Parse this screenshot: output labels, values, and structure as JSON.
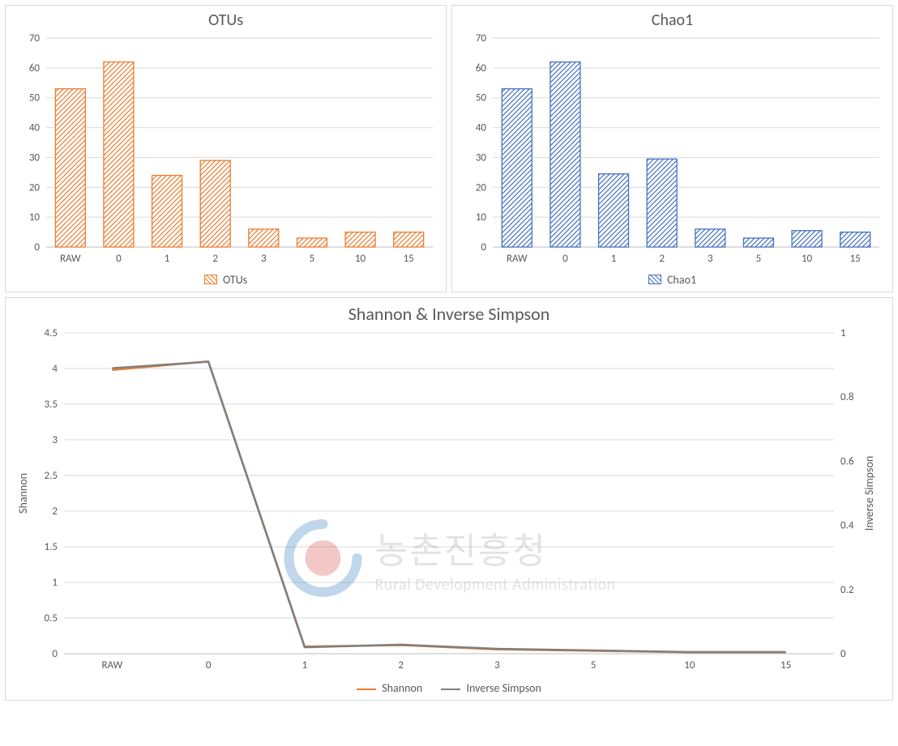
{
  "categories": [
    "RAW",
    "0",
    "1",
    "2",
    "3",
    "5",
    "10",
    "15"
  ],
  "bars_ytick_step": 10,
  "top_ylim": [
    0,
    70
  ],
  "otus": {
    "type": "bar",
    "title": "OTUs",
    "series_name": "OTUs",
    "values": [
      53,
      62,
      24,
      29,
      6,
      3,
      5,
      5
    ],
    "bar_stroke": "#ed7d31",
    "bar_fill_hatch": "#ed7d31",
    "background": "#ffffff",
    "grid_color": "#d9d9d9",
    "axis_line_color": "#bfbfbf",
    "tick_color": "#595959",
    "title_color": "#595959",
    "title_fontsize": 20,
    "tick_fontsize": 13,
    "bar_width": 0.62
  },
  "chao1": {
    "type": "bar",
    "title": "Chao1",
    "series_name": "Chao1",
    "values": [
      53,
      62,
      24.5,
      29.5,
      6,
      3,
      5.5,
      5
    ],
    "bar_stroke": "#4472c4",
    "bar_fill_hatch": "#4472c4",
    "background": "#ffffff",
    "grid_color": "#d9d9d9",
    "axis_line_color": "#bfbfbf",
    "tick_color": "#595959",
    "title_color": "#595959",
    "title_fontsize": 20,
    "tick_fontsize": 13,
    "bar_width": 0.62
  },
  "shannon_simpson": {
    "type": "line-dual-axis",
    "title": "Shannon & Inverse Simpson",
    "left_label": "Shannon",
    "right_label": "Inverse Simpson",
    "left_ylim": [
      0,
      4.5
    ],
    "left_ytick_step": 0.5,
    "right_ylim": [
      0,
      1
    ],
    "right_ytick_step": 0.2,
    "series": [
      {
        "name": "Shannon",
        "axis": "left",
        "color": "#ed7d31",
        "line_width": 2.5,
        "values": [
          3.98,
          4.1,
          0.1,
          0.12,
          0.06,
          0.04,
          0.02,
          0.02
        ]
      },
      {
        "name": "Inverse Simpson",
        "axis": "right",
        "color": "#7f7f7f",
        "line_width": 2.5,
        "values": [
          0.89,
          0.91,
          0.02,
          0.028,
          0.015,
          0.01,
          0.005,
          0.005
        ]
      }
    ],
    "background": "#ffffff",
    "grid_color": "#d9d9d9",
    "axis_line_color": "#bfbfbf",
    "tick_color": "#595959",
    "title_color": "#595959",
    "title_fontsize": 22,
    "tick_fontsize": 13
  },
  "watermark": {
    "korean": "농촌진흥청",
    "english": "Rural Development Administration",
    "circle_outer_color": "#1f6fb5",
    "circle_inner_color": "#d43f3a",
    "text_color": "#9c9c9c",
    "opacity": 0.28
  }
}
